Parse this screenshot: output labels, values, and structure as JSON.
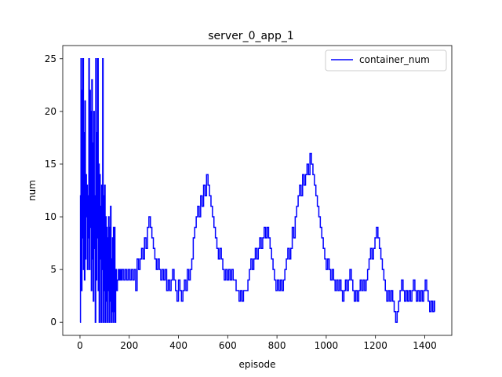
{
  "chart_data": {
    "type": "line",
    "title": "server_0_app_1",
    "xlabel": "episode",
    "ylabel": "num",
    "xlim": [
      -70,
      1510
    ],
    "ylim": [
      -1.25,
      26.25
    ],
    "xticks": [
      0,
      200,
      400,
      600,
      800,
      1000,
      1200,
      1400
    ],
    "yticks": [
      0,
      5,
      10,
      15,
      20,
      25
    ],
    "grid": false,
    "legend_position": "top-right",
    "series": [
      {
        "name": "container_num",
        "color": "#0000ff",
        "points": [
          [
            0,
            0
          ],
          [
            2,
            12
          ],
          [
            4,
            25
          ],
          [
            6,
            3
          ],
          [
            8,
            22
          ],
          [
            10,
            8
          ],
          [
            12,
            25
          ],
          [
            14,
            5
          ],
          [
            16,
            18
          ],
          [
            18,
            4
          ],
          [
            20,
            21
          ],
          [
            22,
            6
          ],
          [
            24,
            14
          ],
          [
            26,
            10
          ],
          [
            28,
            13
          ],
          [
            30,
            5
          ],
          [
            32,
            12
          ],
          [
            34,
            8
          ],
          [
            36,
            25
          ],
          [
            38,
            5
          ],
          [
            40,
            22
          ],
          [
            42,
            9
          ],
          [
            44,
            20
          ],
          [
            46,
            3
          ],
          [
            48,
            23
          ],
          [
            50,
            6
          ],
          [
            52,
            17
          ],
          [
            54,
            2
          ],
          [
            56,
            20
          ],
          [
            58,
            7
          ],
          [
            60,
            12
          ],
          [
            62,
            0
          ],
          [
            64,
            25
          ],
          [
            66,
            4
          ],
          [
            68,
            18
          ],
          [
            70,
            8
          ],
          [
            72,
            25
          ],
          [
            74,
            3
          ],
          [
            76,
            15
          ],
          [
            78,
            0
          ],
          [
            80,
            14
          ],
          [
            82,
            6
          ],
          [
            84,
            11
          ],
          [
            86,
            0
          ],
          [
            88,
            13
          ],
          [
            90,
            5
          ],
          [
            92,
            25
          ],
          [
            94,
            0
          ],
          [
            96,
            12
          ],
          [
            98,
            3
          ],
          [
            100,
            13
          ],
          [
            102,
            0
          ],
          [
            104,
            10
          ],
          [
            106,
            2
          ],
          [
            108,
            9
          ],
          [
            110,
            0
          ],
          [
            112,
            8
          ],
          [
            114,
            3
          ],
          [
            116,
            10
          ],
          [
            118,
            0
          ],
          [
            120,
            9
          ],
          [
            122,
            2
          ],
          [
            124,
            11
          ],
          [
            126,
            0
          ],
          [
            128,
            6
          ],
          [
            130,
            1
          ],
          [
            132,
            8
          ],
          [
            134,
            0
          ],
          [
            136,
            9
          ],
          [
            138,
            1
          ],
          [
            140,
            9
          ],
          [
            142,
            0
          ],
          [
            145,
            5
          ],
          [
            148,
            3
          ],
          [
            152,
            4
          ],
          [
            156,
            5
          ],
          [
            160,
            4
          ],
          [
            164,
            5
          ],
          [
            168,
            4
          ],
          [
            172,
            5
          ],
          [
            178,
            4
          ],
          [
            184,
            5
          ],
          [
            190,
            4
          ],
          [
            196,
            5
          ],
          [
            202,
            4
          ],
          [
            208,
            5
          ],
          [
            214,
            4
          ],
          [
            220,
            5
          ],
          [
            226,
            3
          ],
          [
            232,
            6
          ],
          [
            238,
            5
          ],
          [
            244,
            6
          ],
          [
            250,
            7
          ],
          [
            256,
            6
          ],
          [
            262,
            8
          ],
          [
            268,
            7
          ],
          [
            274,
            9
          ],
          [
            280,
            10
          ],
          [
            286,
            9
          ],
          [
            292,
            8
          ],
          [
            298,
            7
          ],
          [
            304,
            6
          ],
          [
            310,
            5
          ],
          [
            316,
            6
          ],
          [
            322,
            5
          ],
          [
            328,
            4
          ],
          [
            334,
            5
          ],
          [
            340,
            4
          ],
          [
            346,
            5
          ],
          [
            352,
            3
          ],
          [
            358,
            4
          ],
          [
            364,
            3
          ],
          [
            370,
            4
          ],
          [
            376,
            5
          ],
          [
            382,
            4
          ],
          [
            388,
            3
          ],
          [
            394,
            2
          ],
          [
            400,
            4
          ],
          [
            406,
            3
          ],
          [
            412,
            2
          ],
          [
            418,
            3
          ],
          [
            424,
            4
          ],
          [
            430,
            3
          ],
          [
            436,
            5
          ],
          [
            442,
            4
          ],
          [
            448,
            5
          ],
          [
            454,
            6
          ],
          [
            460,
            8
          ],
          [
            466,
            9
          ],
          [
            472,
            10
          ],
          [
            478,
            11
          ],
          [
            484,
            10
          ],
          [
            490,
            12
          ],
          [
            496,
            11
          ],
          [
            502,
            13
          ],
          [
            508,
            12
          ],
          [
            514,
            14
          ],
          [
            520,
            13
          ],
          [
            526,
            12
          ],
          [
            532,
            11
          ],
          [
            538,
            10
          ],
          [
            544,
            9
          ],
          [
            550,
            8
          ],
          [
            556,
            7
          ],
          [
            562,
            6
          ],
          [
            568,
            7
          ],
          [
            574,
            6
          ],
          [
            580,
            5
          ],
          [
            586,
            4
          ],
          [
            592,
            5
          ],
          [
            598,
            4
          ],
          [
            604,
            5
          ],
          [
            610,
            4
          ],
          [
            616,
            5
          ],
          [
            622,
            4
          ],
          [
            628,
            4
          ],
          [
            634,
            3
          ],
          [
            640,
            3
          ],
          [
            646,
            2
          ],
          [
            652,
            3
          ],
          [
            658,
            2
          ],
          [
            664,
            3
          ],
          [
            670,
            3
          ],
          [
            676,
            3
          ],
          [
            682,
            4
          ],
          [
            688,
            5
          ],
          [
            694,
            6
          ],
          [
            700,
            5
          ],
          [
            706,
            6
          ],
          [
            712,
            7
          ],
          [
            718,
            6
          ],
          [
            724,
            7
          ],
          [
            730,
            8
          ],
          [
            736,
            7
          ],
          [
            742,
            8
          ],
          [
            748,
            9
          ],
          [
            754,
            8
          ],
          [
            760,
            9
          ],
          [
            766,
            8
          ],
          [
            772,
            7
          ],
          [
            778,
            6
          ],
          [
            784,
            5
          ],
          [
            790,
            4
          ],
          [
            796,
            3
          ],
          [
            802,
            4
          ],
          [
            808,
            3
          ],
          [
            814,
            4
          ],
          [
            820,
            3
          ],
          [
            826,
            4
          ],
          [
            832,
            5
          ],
          [
            838,
            6
          ],
          [
            844,
            7
          ],
          [
            850,
            6
          ],
          [
            856,
            7
          ],
          [
            862,
            9
          ],
          [
            868,
            8
          ],
          [
            874,
            10
          ],
          [
            880,
            11
          ],
          [
            886,
            12
          ],
          [
            892,
            13
          ],
          [
            898,
            12
          ],
          [
            904,
            14
          ],
          [
            910,
            13
          ],
          [
            916,
            14
          ],
          [
            922,
            15
          ],
          [
            928,
            14
          ],
          [
            934,
            16
          ],
          [
            940,
            15
          ],
          [
            946,
            14
          ],
          [
            952,
            13
          ],
          [
            958,
            12
          ],
          [
            964,
            11
          ],
          [
            970,
            10
          ],
          [
            976,
            9
          ],
          [
            982,
            8
          ],
          [
            988,
            7
          ],
          [
            994,
            6
          ],
          [
            1000,
            5
          ],
          [
            1006,
            6
          ],
          [
            1012,
            5
          ],
          [
            1018,
            4
          ],
          [
            1024,
            5
          ],
          [
            1030,
            4
          ],
          [
            1036,
            3
          ],
          [
            1042,
            4
          ],
          [
            1048,
            3
          ],
          [
            1054,
            4
          ],
          [
            1060,
            3
          ],
          [
            1066,
            2
          ],
          [
            1072,
            3
          ],
          [
            1078,
            4
          ],
          [
            1084,
            3
          ],
          [
            1090,
            4
          ],
          [
            1096,
            5
          ],
          [
            1102,
            4
          ],
          [
            1108,
            3
          ],
          [
            1114,
            2
          ],
          [
            1120,
            3
          ],
          [
            1126,
            2
          ],
          [
            1132,
            3
          ],
          [
            1138,
            4
          ],
          [
            1144,
            3
          ],
          [
            1150,
            4
          ],
          [
            1156,
            3
          ],
          [
            1162,
            4
          ],
          [
            1168,
            5
          ],
          [
            1174,
            6
          ],
          [
            1180,
            7
          ],
          [
            1186,
            6
          ],
          [
            1192,
            7
          ],
          [
            1198,
            8
          ],
          [
            1204,
            9
          ],
          [
            1210,
            8
          ],
          [
            1216,
            7
          ],
          [
            1222,
            6
          ],
          [
            1228,
            5
          ],
          [
            1234,
            4
          ],
          [
            1240,
            3
          ],
          [
            1246,
            2
          ],
          [
            1252,
            3
          ],
          [
            1258,
            2
          ],
          [
            1264,
            3
          ],
          [
            1270,
            2
          ],
          [
            1276,
            1
          ],
          [
            1282,
            0
          ],
          [
            1288,
            1
          ],
          [
            1294,
            2
          ],
          [
            1300,
            3
          ],
          [
            1306,
            4
          ],
          [
            1312,
            3
          ],
          [
            1318,
            2
          ],
          [
            1324,
            3
          ],
          [
            1330,
            2
          ],
          [
            1336,
            3
          ],
          [
            1342,
            2
          ],
          [
            1348,
            3
          ],
          [
            1354,
            4
          ],
          [
            1360,
            3
          ],
          [
            1366,
            2
          ],
          [
            1372,
            3
          ],
          [
            1378,
            2
          ],
          [
            1384,
            3
          ],
          [
            1390,
            2
          ],
          [
            1396,
            3
          ],
          [
            1402,
            4
          ],
          [
            1408,
            3
          ],
          [
            1414,
            2
          ],
          [
            1420,
            1
          ],
          [
            1426,
            2
          ],
          [
            1432,
            1
          ],
          [
            1438,
            2
          ],
          [
            1440,
            1
          ]
        ]
      }
    ]
  }
}
